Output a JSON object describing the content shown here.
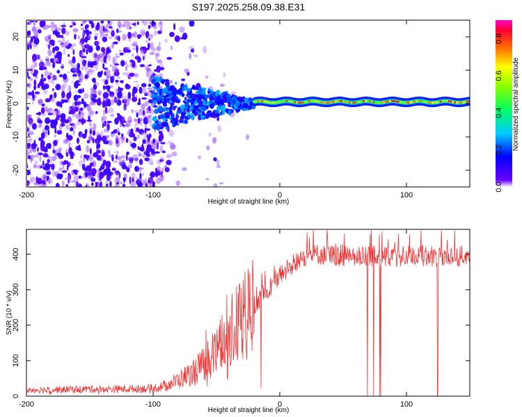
{
  "title": "S197.2025.258.09.38.E31",
  "chart_data": [
    {
      "type": "heatmap",
      "xlabel": "Height of straight line (km)",
      "ylabel": "Frequency (Hz)",
      "xlim": [
        -200,
        150
      ],
      "ylim": [
        -25,
        25
      ],
      "xticks": [
        -200,
        -100,
        0,
        100
      ],
      "yticks": [
        -20,
        -10,
        0,
        10,
        20
      ],
      "colorbar": {
        "label": "Normalized spectral amplitude",
        "range": [
          0,
          0.9
        ],
        "ticks": [
          "0.0",
          "0.2",
          "0.4",
          "0.6",
          "0.8"
        ],
        "colormap": "rainbow (violet-blue-cyan-green-yellow-red-magenta)"
      },
      "features": {
        "noise_region_x": [
          -200,
          -20
        ],
        "noise_density_cutoff_x": -100,
        "signal_line_x": [
          -20,
          150
        ],
        "signal_frequency_hz": 0.5,
        "converging_region_x": [
          -100,
          -20
        ]
      }
    },
    {
      "type": "line",
      "xlabel": "Height of straight line (km)",
      "ylabel": "SNR (10 * v/v)",
      "xlim": [
        -200,
        150
      ],
      "ylim": [
        0,
        470
      ],
      "xticks": [
        -200,
        -100,
        0,
        100
      ],
      "yticks": [
        0,
        100,
        200,
        300,
        400
      ],
      "series": [
        {
          "name": "SNR",
          "color": "#ee3333",
          "x": [
            -200,
            -180,
            -160,
            -140,
            -120,
            -100,
            -90,
            -80,
            -70,
            -60,
            -50,
            -40,
            -30,
            -20,
            -10,
            0,
            10,
            20,
            30,
            40,
            50,
            60,
            70,
            80,
            90,
            100,
            110,
            120,
            130,
            140,
            150
          ],
          "y": [
            18,
            18,
            20,
            20,
            20,
            22,
            30,
            45,
            65,
            90,
            130,
            175,
            220,
            260,
            300,
            340,
            370,
            395,
            400,
            395,
            395,
            390,
            395,
            395,
            390,
            395,
            395,
            395,
            390,
            395,
            395
          ]
        }
      ]
    }
  ]
}
